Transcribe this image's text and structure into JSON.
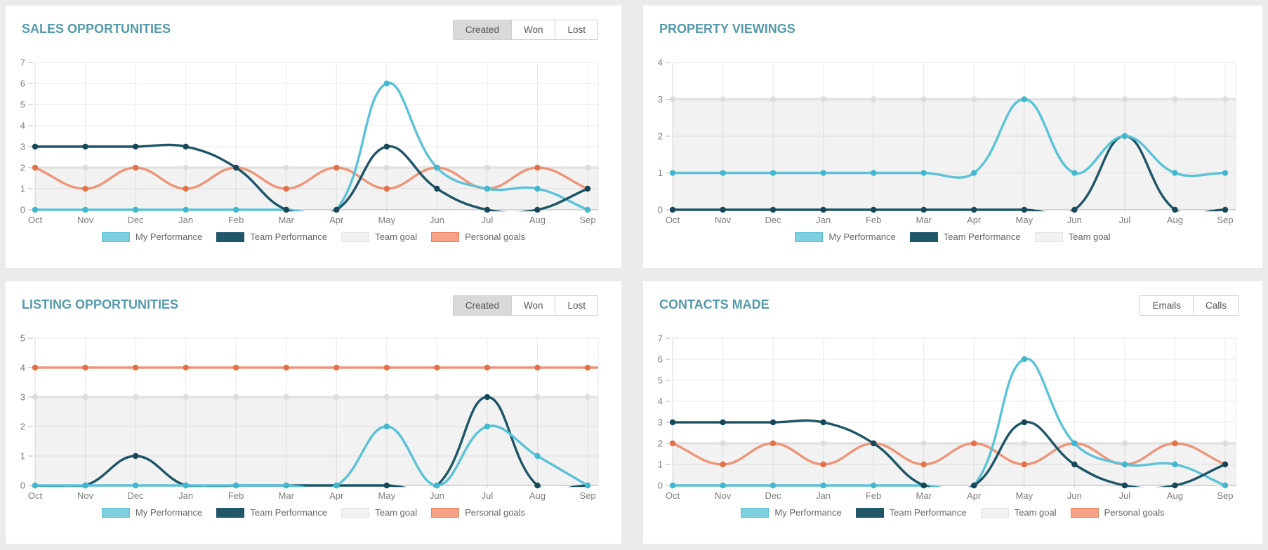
{
  "page": {
    "background": "#ebebeb",
    "panel_background": "#ffffff"
  },
  "colors": {
    "title": "#549aab",
    "axis_text": "#7d7d7d",
    "legend_text": "#666666",
    "grid": "#e9e9e9",
    "zero_line": "#b5b5b5",
    "axis_line": "#d9d9d9",
    "tick": "#b8b8b8",
    "tab_selected_bg": "#d9d9d9",
    "tab_border": "#cfcfcf"
  },
  "series_styles": {
    "my": {
      "line": "#5bc2d7",
      "point": "#42b8cf",
      "legend_fill": "#7fd0de",
      "legend_border": "#5bc2d7"
    },
    "team": {
      "line": "#1d5566",
      "point": "#17485a",
      "legend_fill": "#215869",
      "legend_border": "#1d5566"
    },
    "goal": {
      "line": "#e3e3e3",
      "point": "#dddddd",
      "area": "rgba(0,0,0,0.05)",
      "legend_fill": "#f2f2f2",
      "legend_border": "#e5e5e5"
    },
    "personal": {
      "line": "#ee9579",
      "point": "#e0714a",
      "legend_fill": "#f5a286",
      "legend_border": "#e8815c"
    }
  },
  "panels": [
    {
      "title": "SALES OPPORTUNITIES",
      "tabs": [
        {
          "label": "Created",
          "selected": true
        },
        {
          "label": "Won",
          "selected": false
        },
        {
          "label": "Lost",
          "selected": false
        }
      ]
    },
    {
      "title": "PROPERTY VIEWINGS",
      "tabs": []
    },
    {
      "title": "LISTING OPPORTUNITIES",
      "tabs": [
        {
          "label": "Created",
          "selected": true
        },
        {
          "label": "Won",
          "selected": false
        },
        {
          "label": "Lost",
          "selected": false
        }
      ]
    },
    {
      "title": "CONTACTS MADE",
      "tabs": [
        {
          "label": "Emails",
          "selected": false
        },
        {
          "label": "Calls",
          "selected": false
        }
      ]
    }
  ],
  "chart_data": [
    {
      "panel": "SALES OPPORTUNITIES",
      "type": "line",
      "x": [
        "Oct",
        "Nov",
        "Dec",
        "Jan",
        "Feb",
        "Mar",
        "Apr",
        "May",
        "Jun",
        "Jul",
        "Aug",
        "Sep"
      ],
      "ylim": [
        0,
        7
      ],
      "grid": true,
      "legend_position": "bottom",
      "team_on_top": true,
      "series": [
        {
          "name": "My Performance",
          "key": "my",
          "values": [
            0,
            0,
            0,
            0,
            0,
            0,
            0,
            6,
            2,
            1,
            1,
            0
          ]
        },
        {
          "name": "Team Performance",
          "key": "team",
          "values": [
            3,
            3,
            3,
            3,
            2,
            0,
            0,
            3,
            1,
            0,
            0,
            1
          ]
        },
        {
          "name": "Team goal",
          "key": "goal",
          "values": [
            2,
            2,
            2,
            2,
            2,
            2,
            2,
            2,
            2,
            2,
            2,
            2
          ],
          "area": true,
          "extend_right": true
        },
        {
          "name": "Personal goals",
          "key": "personal",
          "values": [
            2,
            1,
            2,
            1,
            2,
            1,
            2,
            1,
            2,
            1,
            2,
            1
          ]
        }
      ]
    },
    {
      "panel": "PROPERTY VIEWINGS",
      "type": "line",
      "x": [
        "Oct",
        "Nov",
        "Dec",
        "Jan",
        "Feb",
        "Mar",
        "Apr",
        "May",
        "Jun",
        "Jul",
        "Aug",
        "Sep"
      ],
      "ylim": [
        0,
        4
      ],
      "grid": true,
      "legend_position": "bottom",
      "team_on_top": false,
      "series": [
        {
          "name": "My Performance",
          "key": "my",
          "values": [
            1,
            1,
            1,
            1,
            1,
            1,
            1,
            3,
            1,
            2,
            1,
            1
          ]
        },
        {
          "name": "Team Performance",
          "key": "team",
          "values": [
            0,
            0,
            0,
            0,
            0,
            0,
            0,
            0,
            0,
            2,
            0,
            0
          ]
        },
        {
          "name": "Team goal",
          "key": "goal",
          "values": [
            3,
            3,
            3,
            3,
            3,
            3,
            3,
            3,
            3,
            3,
            3,
            3
          ],
          "area": true,
          "extend_right": true
        }
      ]
    },
    {
      "panel": "LISTING OPPORTUNITIES",
      "type": "line",
      "x": [
        "Oct",
        "Nov",
        "Dec",
        "Jan",
        "Feb",
        "Mar",
        "Apr",
        "May",
        "Jun",
        "Jul",
        "Aug",
        "Sep"
      ],
      "ylim": [
        0,
        5
      ],
      "grid": true,
      "legend_position": "bottom",
      "team_on_top": false,
      "series": [
        {
          "name": "My Performance",
          "key": "my",
          "values": [
            0,
            0,
            0,
            0,
            0,
            0,
            0,
            2,
            0,
            2,
            1,
            0
          ]
        },
        {
          "name": "Team Performance",
          "key": "team",
          "values": [
            0,
            0,
            1,
            0,
            0,
            0,
            0,
            0,
            0,
            3,
            0,
            0
          ]
        },
        {
          "name": "Team goal",
          "key": "goal",
          "values": [
            3,
            3,
            3,
            3,
            3,
            3,
            3,
            3,
            3,
            3,
            3,
            3
          ],
          "area": true,
          "extend_right": true
        },
        {
          "name": "Personal goals",
          "key": "personal",
          "values": [
            4,
            4,
            4,
            4,
            4,
            4,
            4,
            4,
            4,
            4,
            4,
            4
          ],
          "extend_right": true
        }
      ]
    },
    {
      "panel": "CONTACTS MADE",
      "type": "line",
      "x": [
        "Oct",
        "Nov",
        "Dec",
        "Jan",
        "Feb",
        "Mar",
        "Apr",
        "May",
        "Jun",
        "Jul",
        "Aug",
        "Sep"
      ],
      "ylim": [
        0,
        7
      ],
      "grid": true,
      "legend_position": "bottom",
      "team_on_top": true,
      "series": [
        {
          "name": "My Performance",
          "key": "my",
          "values": [
            0,
            0,
            0,
            0,
            0,
            0,
            0,
            6,
            2,
            1,
            1,
            0
          ]
        },
        {
          "name": "Team Performance",
          "key": "team",
          "values": [
            3,
            3,
            3,
            3,
            2,
            0,
            0,
            3,
            1,
            0,
            0,
            1
          ]
        },
        {
          "name": "Team goal",
          "key": "goal",
          "values": [
            2,
            2,
            2,
            2,
            2,
            2,
            2,
            2,
            2,
            2,
            2,
            2
          ],
          "area": true,
          "extend_right": true
        },
        {
          "name": "Personal goals",
          "key": "personal",
          "values": [
            2,
            1,
            2,
            1,
            2,
            1,
            2,
            1,
            2,
            1,
            2,
            1
          ]
        }
      ]
    }
  ]
}
